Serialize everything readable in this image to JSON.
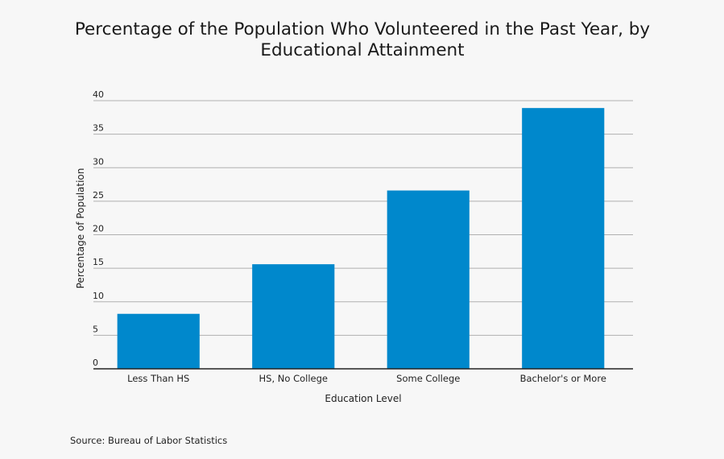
{
  "chart_data": {
    "type": "bar",
    "title": "Percentage of the Population Who Volunteered in the Past Year, by Educational Attainment",
    "xlabel": "Education Level",
    "ylabel": "Percentage of Population",
    "categories": [
      "Less Than HS",
      "HS, No College",
      "Some College",
      "Bachelor's or More"
    ],
    "values": [
      8.2,
      15.6,
      26.6,
      38.9
    ],
    "ylim": [
      0,
      40
    ],
    "yticks": [
      0,
      5,
      10,
      15,
      20,
      25,
      30,
      35,
      40
    ],
    "grid": true,
    "bar_color": "#0088cc",
    "grid_color": "#b0b0b0",
    "axis_color": "#222222"
  },
  "footer": {
    "source": "Source: Bureau of Labor Statistics"
  }
}
